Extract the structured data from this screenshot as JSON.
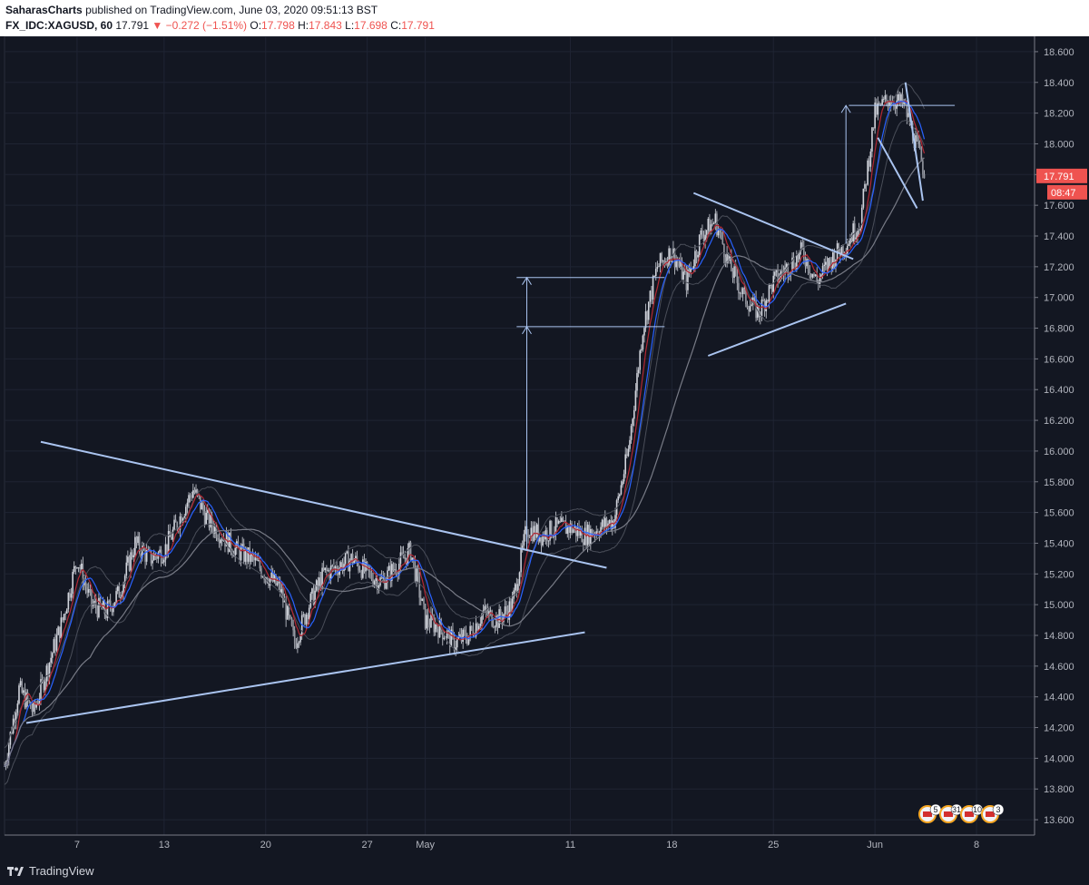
{
  "header": {
    "author": "SaharasCharts",
    "published_text": "published on TradingView.com, June 03, 2020 09:51:13 BST",
    "symbol": "FX_IDC:XAGUSD, 60",
    "last": "17.791",
    "change": "▼ −0.272 (−1.51%)",
    "o_label": "O:",
    "o_value": "17.798",
    "h_label": "H:",
    "h_value": "17.843",
    "l_label": "L:",
    "l_value": "17.698",
    "c_label": "C:",
    "c_value": "17.791"
  },
  "colors": {
    "background": "#131722",
    "grid": "#1f2433",
    "candle": "#d1d4dc",
    "trendline": "#aac4f0",
    "ema_blue": "#2962ff",
    "ema_red": "#b22833",
    "ma_gray": "#787b86",
    "price_tag": "#ef5350"
  },
  "chart_data": {
    "type": "candlestick",
    "symbol": "FX_IDC:XAGUSD",
    "interval": "60",
    "ylim": [
      13.5,
      18.7
    ],
    "y_ticks": [
      "18.600",
      "18.400",
      "18.200",
      "18.000",
      "17.800",
      "17.600",
      "17.400",
      "17.200",
      "17.000",
      "16.800",
      "16.600",
      "16.400",
      "16.200",
      "16.000",
      "15.800",
      "15.600",
      "15.400",
      "15.200",
      "15.000",
      "14.800",
      "14.600",
      "14.400",
      "14.200",
      "14.000",
      "13.800",
      "13.600"
    ],
    "x_ticks": [
      "7",
      "13",
      "20",
      "27",
      "May",
      "11",
      "18",
      "25",
      "Jun",
      "8"
    ],
    "x_tick_days": [
      7,
      13,
      20,
      27,
      31,
      41,
      48,
      55,
      62,
      69
    ],
    "x_range_days": [
      2,
      73
    ],
    "price_path": [
      [
        2,
        13.95
      ],
      [
        3,
        14.45
      ],
      [
        4,
        14.3
      ],
      [
        5,
        14.6
      ],
      [
        6,
        14.9
      ],
      [
        7,
        15.3
      ],
      [
        8,
        15.0
      ],
      [
        9,
        14.95
      ],
      [
        10,
        15.1
      ],
      [
        11,
        15.4
      ],
      [
        12,
        15.3
      ],
      [
        13,
        15.35
      ],
      [
        14,
        15.55
      ],
      [
        15,
        15.75
      ],
      [
        16,
        15.55
      ],
      [
        17,
        15.45
      ],
      [
        18,
        15.35
      ],
      [
        19,
        15.3
      ],
      [
        20,
        15.2
      ],
      [
        21,
        15.1
      ],
      [
        22,
        14.75
      ],
      [
        23,
        15.0
      ],
      [
        24,
        15.2
      ],
      [
        25,
        15.25
      ],
      [
        26,
        15.3
      ],
      [
        27,
        15.2
      ],
      [
        28,
        15.15
      ],
      [
        29,
        15.25
      ],
      [
        30,
        15.35
      ],
      [
        31,
        14.9
      ],
      [
        32,
        14.85
      ],
      [
        33,
        14.75
      ],
      [
        34,
        14.8
      ],
      [
        35,
        14.95
      ],
      [
        36,
        14.9
      ],
      [
        37,
        15.0
      ],
      [
        38,
        15.5
      ],
      [
        39,
        15.45
      ],
      [
        40,
        15.5
      ],
      [
        41,
        15.5
      ],
      [
        42,
        15.45
      ],
      [
        43,
        15.5
      ],
      [
        44,
        15.55
      ],
      [
        45,
        16.0
      ],
      [
        46,
        16.8
      ],
      [
        47,
        17.2
      ],
      [
        48,
        17.3
      ],
      [
        49,
        17.1
      ],
      [
        50,
        17.4
      ],
      [
        51,
        17.5
      ],
      [
        52,
        17.2
      ],
      [
        53,
        17.0
      ],
      [
        54,
        16.9
      ],
      [
        55,
        17.1
      ],
      [
        56,
        17.2
      ],
      [
        57,
        17.3
      ],
      [
        58,
        17.1
      ],
      [
        59,
        17.25
      ],
      [
        60,
        17.35
      ],
      [
        61,
        17.5
      ],
      [
        62,
        18.2
      ],
      [
        63,
        18.3
      ],
      [
        64,
        18.25
      ],
      [
        65,
        17.95
      ],
      [
        65.5,
        17.79
      ]
    ],
    "last_price": "17.791",
    "countdown": "08:47",
    "trendlines": [
      {
        "p1": [
          4.5,
          16.06
        ],
        "p2": [
          43.5,
          15.24
        ]
      },
      {
        "p1": [
          3.5,
          14.23
        ],
        "p2": [
          42.0,
          14.82
        ]
      },
      {
        "p1": [
          49.5,
          17.68
        ],
        "p2": [
          60.5,
          17.25
        ]
      },
      {
        "p1": [
          50.5,
          16.62
        ],
        "p2": [
          60.0,
          16.96
        ]
      },
      {
        "p1": [
          62.2,
          18.04
        ],
        "p2": [
          64.9,
          17.58
        ]
      },
      {
        "p1": [
          64.1,
          18.4
        ],
        "p2": [
          65.3,
          17.63
        ]
      }
    ],
    "measure_lines": [
      {
        "x1": 37.3,
        "x2": 47.5,
        "y": 17.13
      },
      {
        "x1": 37.3,
        "x2": 47.5,
        "y": 16.81
      },
      {
        "x1": 60.2,
        "x2": 67.5,
        "y": 18.25
      }
    ],
    "arrows": [
      {
        "x": 38.0,
        "y_from": 15.35,
        "y_to": 17.13
      },
      {
        "x": 38.0,
        "y_from": 15.35,
        "y_to": 16.81
      },
      {
        "x": 60.0,
        "y_from": 17.35,
        "y_to": 18.25
      }
    ],
    "event_flags": [
      "5",
      "31",
      "10",
      "3"
    ]
  },
  "footer": {
    "brand": "TradingView"
  }
}
